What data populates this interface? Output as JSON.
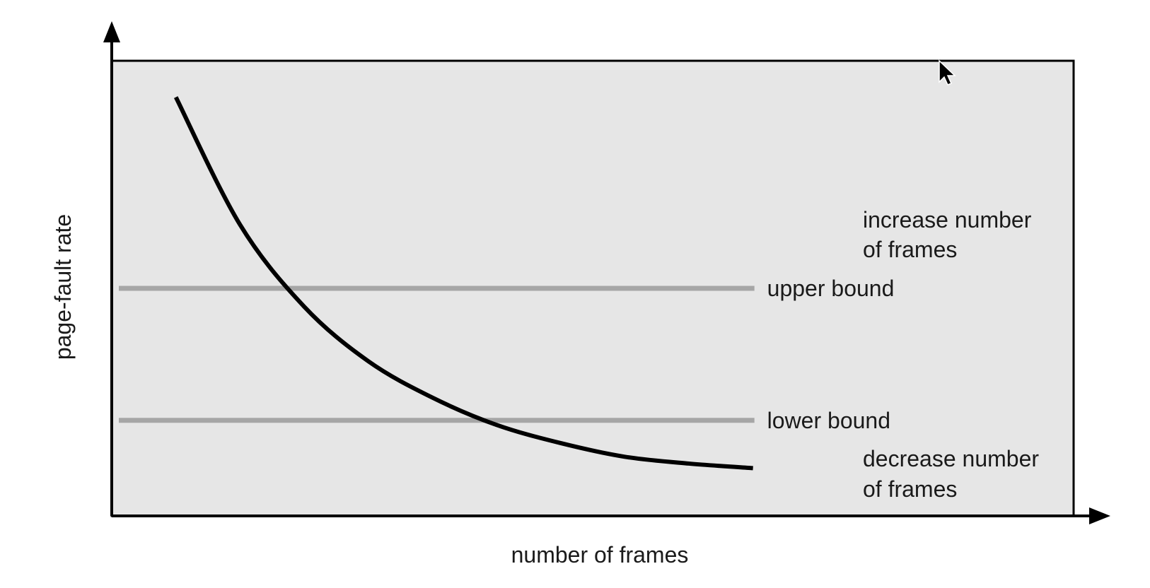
{
  "chart_data": {
    "type": "line",
    "title": "",
    "xlabel": "number of frames",
    "ylabel": "page-fault rate",
    "grid": false,
    "legend": "none",
    "series": [
      {
        "x": [
          1,
          2,
          3,
          4,
          5,
          6,
          7,
          8,
          9,
          10
        ],
        "values": [
          9.2,
          6.4,
          4.6,
          3.4,
          2.6,
          2.0,
          1.6,
          1.3,
          1.15,
          1.05
        ]
      }
    ],
    "xlim": [
      0,
      15
    ],
    "ylim": [
      0,
      10
    ],
    "reference_lines": [
      {
        "label": "upper bound",
        "y": 5.0,
        "x_end": 10
      },
      {
        "label": "lower bound",
        "y": 2.1,
        "x_end": 10
      }
    ],
    "annotations": [
      {
        "lines": [
          "increase number",
          "of frames"
        ],
        "region": "above upper bound"
      },
      {
        "lines": [
          "decrease number",
          "of frames"
        ],
        "region": "below lower bound"
      }
    ],
    "colors": {
      "plot_background": "#e6e6e6",
      "curve": "#000000",
      "bounds": "#a6a6a6",
      "axes": "#000000",
      "text": "#1a1a1a"
    }
  }
}
